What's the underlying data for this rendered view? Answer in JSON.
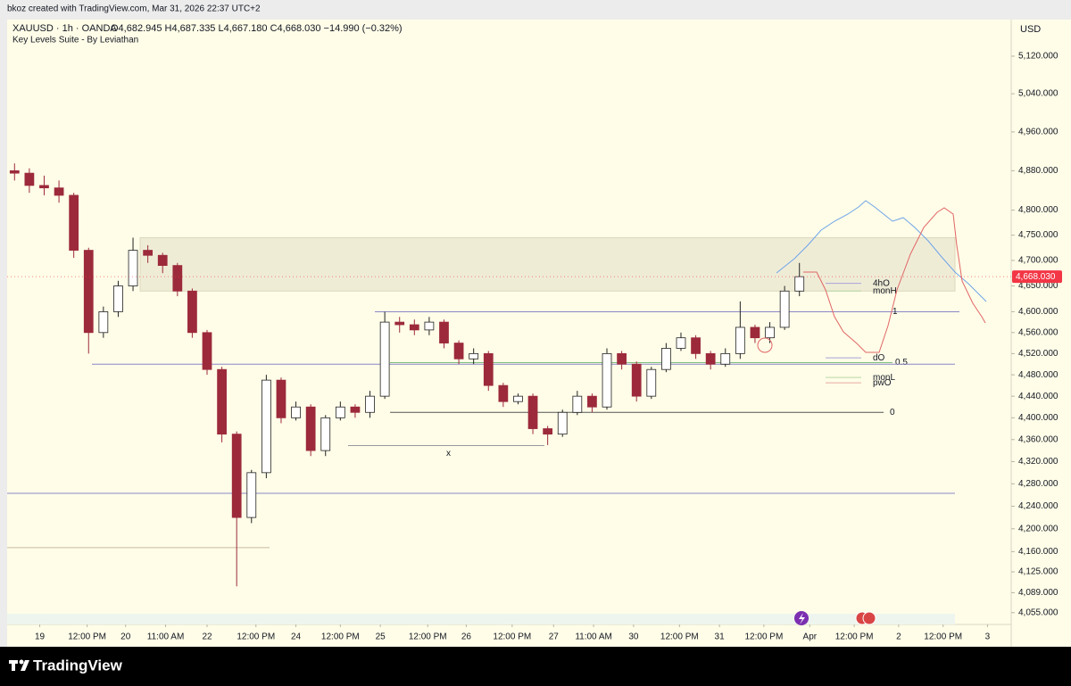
{
  "chart_data": {
    "type": "candlestick",
    "credit": "bkoz created with TradingView.com, Mar 31, 2026 22:37 UTC+2",
    "title": "XAUUSD · 1h · OANDA",
    "ohlc_text": "O4,682.945 H4,687.335 L4,667.180 C4,668.030 −14.990 (−0.32%)",
    "indicator": "Key Levels Suite - By Leviathan",
    "currency": "USD",
    "brand": "TradingView",
    "log_scale": true,
    "up_color": "#ffffff",
    "down_color": "#9c2a3a",
    "open": [
      4880,
      4875,
      4850,
      4845,
      4830,
      4720,
      4560,
      4600,
      4650,
      4720,
      4710,
      4690,
      4640,
      4560,
      4490,
      4370,
      4220,
      4300,
      4470,
      4400,
      4420,
      4340,
      4400,
      4420,
      4410,
      4440,
      4580,
      4575,
      4565,
      4580,
      4540,
      4510,
      4520,
      4460,
      4430,
      4440,
      4380,
      4370,
      4410,
      4440,
      4420,
      4520,
      4500,
      4440,
      4490,
      4530,
      4550,
      4520,
      4500,
      4520,
      4570,
      4550,
      4570,
      4640
    ],
    "high": [
      4895,
      4885,
      4870,
      4860,
      4835,
      4725,
      4610,
      4660,
      4745,
      4730,
      4715,
      4695,
      4645,
      4565,
      4495,
      4375,
      4305,
      4480,
      4475,
      4430,
      4425,
      4405,
      4430,
      4425,
      4450,
      4600,
      4590,
      4585,
      4590,
      4585,
      4545,
      4530,
      4525,
      4465,
      4445,
      4445,
      4385,
      4415,
      4450,
      4445,
      4530,
      4525,
      4505,
      4495,
      4540,
      4560,
      4555,
      4525,
      4530,
      4620,
      4575,
      4580,
      4650,
      4695
    ],
    "low": [
      4860,
      4835,
      4830,
      4815,
      4705,
      4520,
      4550,
      4590,
      4640,
      4695,
      4675,
      4630,
      4550,
      4480,
      4355,
      4100,
      4210,
      4290,
      4390,
      4395,
      4330,
      4330,
      4395,
      4400,
      4400,
      4435,
      4560,
      4555,
      4555,
      4530,
      4500,
      4500,
      4450,
      4420,
      4425,
      4370,
      4350,
      4365,
      4405,
      4410,
      4415,
      4490,
      4430,
      4435,
      4485,
      4525,
      4510,
      4490,
      4495,
      4510,
      4540,
      4540,
      4565,
      4630
    ],
    "close": [
      4875,
      4850,
      4845,
      4830,
      4720,
      4560,
      4600,
      4650,
      4720,
      4710,
      4690,
      4640,
      4560,
      4490,
      4370,
      4220,
      4300,
      4470,
      4400,
      4420,
      4340,
      4400,
      4420,
      4410,
      4440,
      4580,
      4575,
      4565,
      4580,
      4540,
      4510,
      4520,
      4460,
      4430,
      4440,
      4380,
      4370,
      4410,
      4440,
      4420,
      4520,
      4500,
      4440,
      4490,
      4530,
      4550,
      4520,
      4500,
      4520,
      4570,
      4550,
      4570,
      4640,
      4668.03
    ],
    "last_price": 4668.03,
    "last_price_label": "4,668.030",
    "zone": [
      4640,
      4745
    ],
    "levels": [
      {
        "value": 4600,
        "label": "1",
        "color": "#8c86c8"
      },
      {
        "value": 4503,
        "label": "0.5",
        "color": "#7fbf7f"
      },
      {
        "value": 4410,
        "label": "0",
        "color": "#555555"
      },
      {
        "value": 4500,
        "color": "#8c86c8"
      },
      {
        "value": 4263,
        "color": "#8c86c8"
      },
      {
        "value": 4167,
        "color": "#c9b9a0"
      },
      {
        "value": 4349,
        "color": "#999999"
      },
      {
        "value": 4655,
        "label": "4hO",
        "color": "#a8a4d8"
      },
      {
        "value": 4640,
        "label": "monH",
        "color": "#b6d9a6"
      },
      {
        "value": 4512,
        "label": "dO",
        "color": "#a8a4d8"
      },
      {
        "value": 4475,
        "label": "monL",
        "color": "#b6d9a6"
      },
      {
        "value": 4465,
        "label": "pwO",
        "color": "#e6a8a0"
      },
      {
        "value": 4335,
        "label": "x",
        "color": "#d8c050"
      }
    ],
    "xlim": [
      0,
      67.8
    ],
    "xticks": [
      {
        "value": 2.2,
        "label": "19"
      },
      {
        "value": 5.4,
        "label": "12:00 PM"
      },
      {
        "value": 8.0,
        "label": "20"
      },
      {
        "value": 10.7,
        "label": "11:00 AM"
      },
      {
        "value": 13.5,
        "label": "22"
      },
      {
        "value": 16.8,
        "label": "12:00 PM"
      },
      {
        "value": 19.5,
        "label": "24"
      },
      {
        "value": 22.5,
        "label": "12:00 PM"
      },
      {
        "value": 25.2,
        "label": "25"
      },
      {
        "value": 28.4,
        "label": "12:00 PM"
      },
      {
        "value": 31.0,
        "label": "26"
      },
      {
        "value": 34.1,
        "label": "12:00 PM"
      },
      {
        "value": 36.9,
        "label": "27"
      },
      {
        "value": 39.6,
        "label": "11:00 AM"
      },
      {
        "value": 42.3,
        "label": "30"
      },
      {
        "value": 45.4,
        "label": "12:00 PM"
      },
      {
        "value": 48.1,
        "label": "31"
      },
      {
        "value": 51.1,
        "label": "12:00 PM"
      },
      {
        "value": 54.2,
        "label": "Apr"
      },
      {
        "value": 57.2,
        "label": "12:00 PM"
      },
      {
        "value": 60.2,
        "label": "2"
      },
      {
        "value": 63.2,
        "label": "12:00 PM"
      },
      {
        "value": 66.2,
        "label": "3"
      }
    ],
    "ylim": [
      4035,
      5199
    ],
    "yticks": [
      {
        "value": 5120,
        "label": "5,120.000"
      },
      {
        "value": 5040,
        "label": "5,040.000"
      },
      {
        "value": 4960,
        "label": "4,960.000"
      },
      {
        "value": 4880,
        "label": "4,880.000"
      },
      {
        "value": 4800,
        "label": "4,800.000"
      },
      {
        "value": 4750,
        "label": "4,750.000"
      },
      {
        "value": 4700,
        "label": "4,700.000"
      },
      {
        "value": 4650,
        "label": "4,650.000"
      },
      {
        "value": 4600,
        "label": "4,600.000"
      },
      {
        "value": 4560,
        "label": "4,560.000"
      },
      {
        "value": 4520,
        "label": "4,520.000"
      },
      {
        "value": 4480,
        "label": "4,480.000"
      },
      {
        "value": 4440,
        "label": "4,440.000"
      },
      {
        "value": 4400,
        "label": "4,400.000"
      },
      {
        "value": 4360,
        "label": "4,360.000"
      },
      {
        "value": 4320,
        "label": "4,320.000"
      },
      {
        "value": 4280,
        "label": "4,280.000"
      },
      {
        "value": 4240,
        "label": "4,240.000"
      },
      {
        "value": 4200,
        "label": "4,200.000"
      },
      {
        "value": 4160,
        "label": "4,160.000"
      },
      {
        "value": 4125,
        "label": "4,125.000"
      },
      {
        "value": 4089,
        "label": "4,089.000"
      },
      {
        "value": 4055,
        "label": "4,055.000"
      }
    ]
  }
}
